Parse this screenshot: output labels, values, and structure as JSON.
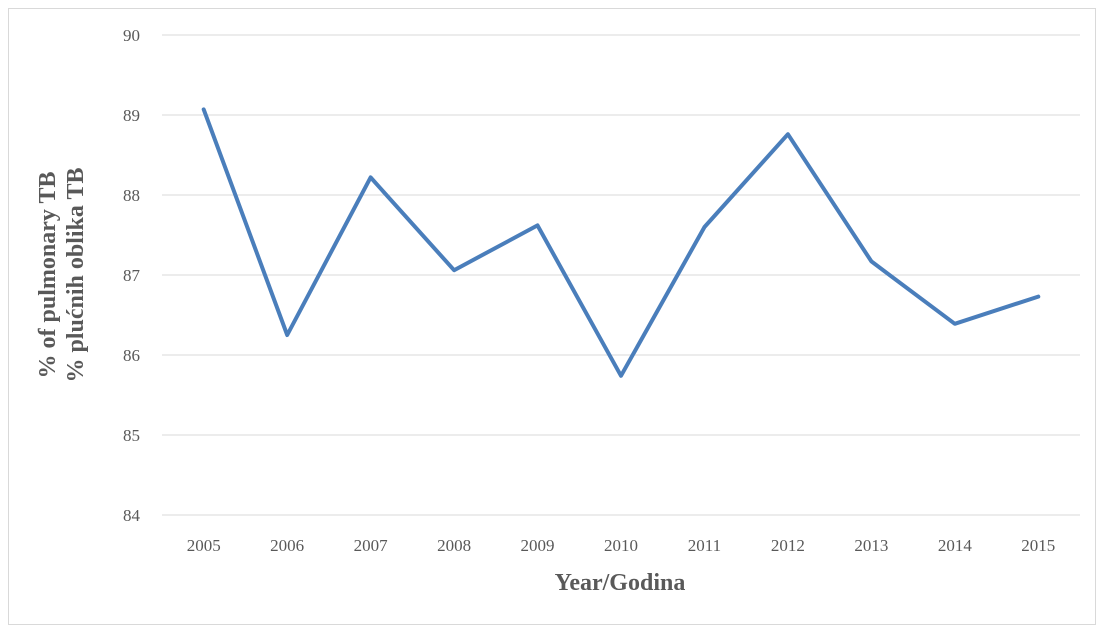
{
  "chart_data": {
    "type": "line",
    "title": "",
    "xlabel": "Year/Godina",
    "ylabel_lines": [
      "% of pulmonary TB",
      "% plućnih oblika TB"
    ],
    "categories": [
      "2005",
      "2006",
      "2007",
      "2008",
      "2009",
      "2010",
      "2011",
      "2012",
      "2013",
      "2014",
      "2015"
    ],
    "series": [
      {
        "values": [
          89.07,
          86.25,
          88.22,
          87.06,
          87.62,
          85.74,
          87.6,
          88.76,
          87.17,
          86.39,
          86.73
        ]
      }
    ],
    "ylim": [
      84,
      90
    ],
    "yticks": [
      "84",
      "85",
      "86",
      "87",
      "88",
      "89",
      "90"
    ],
    "grid": true,
    "colors": {
      "line": "#4a7ebb",
      "grid": "#d9d9d9",
      "text": "#595959"
    }
  }
}
